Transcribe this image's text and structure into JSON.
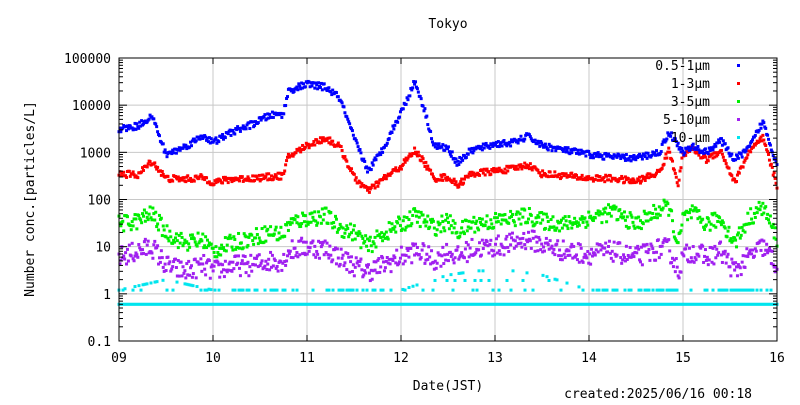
{
  "chart_data": {
    "type": "scatter",
    "title": "Tokyo",
    "xlabel": "Date(JST)",
    "ylabel": "Number conc.[particles/L]",
    "yscale": "log",
    "ylim": [
      0.1,
      100000
    ],
    "xlim": [
      9,
      16
    ],
    "x_ticks": [
      "09",
      "10",
      "11",
      "12",
      "13",
      "14",
      "15",
      "16"
    ],
    "y_ticks": [
      "0.1",
      "1",
      "10",
      "100",
      "1000",
      "10000",
      "100000"
    ],
    "grid": true,
    "legend_position": "top-right",
    "footer": "created:2025/06/16 00:18",
    "series": [
      {
        "name": "0.5-1μm",
        "color": "#0000ff",
        "x": [
          9.0,
          9.2,
          9.35,
          9.5,
          9.7,
          9.9,
          10.0,
          10.2,
          10.4,
          10.6,
          10.75,
          10.8,
          11.0,
          11.2,
          11.35,
          11.5,
          11.65,
          11.8,
          12.0,
          12.15,
          12.25,
          12.35,
          12.5,
          12.6,
          12.75,
          13.0,
          13.2,
          13.35,
          13.5,
          13.75,
          14.0,
          14.25,
          14.5,
          14.75,
          14.85,
          14.95,
          15.0,
          15.1,
          15.25,
          15.4,
          15.55,
          15.7,
          15.85,
          16.0
        ],
        "y": [
          3100,
          3600,
          6000,
          900,
          1300,
          2300,
          1600,
          2700,
          3800,
          6000,
          6500,
          20000,
          28000,
          24000,
          14000,
          2000,
          400,
          1100,
          7000,
          32000,
          8000,
          1400,
          1200,
          600,
          1100,
          1500,
          1600,
          2200,
          1400,
          1100,
          900,
          800,
          750,
          1000,
          2700,
          1400,
          1000,
          1300,
          1000,
          1800,
          700,
          1200,
          4500,
          550
        ]
      },
      {
        "name": "1-3μm",
        "color": "#ff0000",
        "x": [
          9.0,
          9.2,
          9.35,
          9.5,
          9.7,
          9.9,
          10.0,
          10.2,
          10.4,
          10.6,
          10.75,
          10.8,
          11.0,
          11.2,
          11.35,
          11.5,
          11.65,
          11.8,
          12.0,
          12.15,
          12.25,
          12.35,
          12.5,
          12.6,
          12.75,
          13.0,
          13.2,
          13.35,
          13.5,
          13.75,
          14.0,
          14.25,
          14.5,
          14.75,
          14.85,
          14.95,
          15.0,
          15.1,
          15.25,
          15.4,
          15.55,
          15.7,
          15.85,
          16.0
        ],
        "y": [
          350,
          330,
          650,
          280,
          270,
          290,
          230,
          270,
          280,
          300,
          320,
          800,
          1400,
          2000,
          1300,
          300,
          150,
          260,
          500,
          1100,
          600,
          280,
          300,
          200,
          350,
          400,
          450,
          550,
          350,
          320,
          280,
          280,
          240,
          380,
          1100,
          220,
          900,
          1200,
          700,
          1100,
          230,
          1000,
          2000,
          200
        ]
      },
      {
        "name": "3-5μm",
        "color": "#00ee00",
        "x": [
          9.0,
          9.2,
          9.35,
          9.5,
          9.7,
          9.9,
          10.0,
          10.2,
          10.4,
          10.6,
          10.75,
          10.8,
          11.0,
          11.2,
          11.35,
          11.5,
          11.65,
          11.8,
          12.0,
          12.15,
          12.25,
          12.35,
          12.5,
          12.6,
          12.75,
          13.0,
          13.2,
          13.35,
          13.5,
          13.75,
          14.0,
          14.25,
          14.5,
          14.75,
          14.85,
          14.95,
          15.0,
          15.1,
          15.25,
          15.4,
          15.55,
          15.7,
          15.85,
          16.0
        ],
        "y": [
          30,
          35,
          50,
          20,
          12,
          14,
          8,
          12,
          15,
          20,
          18,
          30,
          40,
          45,
          25,
          20,
          10,
          18,
          30,
          45,
          35,
          25,
          35,
          20,
          30,
          35,
          40,
          45,
          35,
          30,
          40,
          55,
          30,
          60,
          70,
          10,
          40,
          50,
          30,
          40,
          12,
          40,
          70,
          15
        ]
      },
      {
        "name": "5-10μm",
        "color": "#a020f0",
        "x": [
          9.0,
          9.2,
          9.35,
          9.5,
          9.7,
          9.9,
          10.0,
          10.2,
          10.4,
          10.6,
          10.75,
          10.8,
          11.0,
          11.2,
          11.35,
          11.5,
          11.65,
          11.8,
          12.0,
          12.15,
          12.25,
          12.35,
          12.5,
          12.6,
          12.75,
          13.0,
          13.2,
          13.35,
          13.5,
          13.75,
          14.0,
          14.25,
          14.5,
          14.75,
          14.85,
          14.95,
          15.0,
          15.1,
          15.25,
          15.4,
          15.55,
          15.7,
          15.85,
          16.0
        ],
        "y": [
          6,
          8,
          10,
          4,
          3,
          4,
          3,
          4,
          4,
          5,
          5,
          8,
          10,
          9,
          6,
          4,
          3,
          4,
          6,
          8,
          7,
          5,
          8,
          6,
          9,
          10,
          12,
          15,
          11,
          8,
          7,
          8,
          6,
          9,
          9,
          3,
          6,
          8,
          6,
          8,
          3,
          6,
          10,
          4
        ]
      },
      {
        "name": "10-μm",
        "color": "#00e5ee",
        "note_levels": "quantized counts",
        "x": [
          9.0,
          9.5,
          10.0,
          10.5,
          11.0,
          11.5,
          12.0,
          12.5,
          13.0,
          13.5,
          14.0,
          14.5,
          15.0,
          15.5,
          16.0
        ],
        "y_base": 0.6,
        "y_upper": [
          1.2,
          2.0,
          1.2,
          1.2,
          1.2,
          1.2,
          1.2,
          2.5,
          3.5,
          2.5,
          1.2,
          1.2,
          1.2,
          1.2,
          1.2
        ]
      }
    ]
  }
}
